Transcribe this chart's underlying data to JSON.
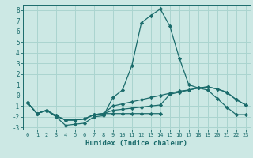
{
  "xlabel": "Humidex (Indice chaleur)",
  "background_color": "#cce8e4",
  "grid_color": "#aad4cf",
  "line_color": "#1a6b6b",
  "xlim": [
    -0.5,
    23.5
  ],
  "ylim": [
    -3.2,
    8.5
  ],
  "yticks": [
    -3,
    -2,
    -1,
    0,
    1,
    2,
    3,
    4,
    5,
    6,
    7,
    8
  ],
  "xticks": [
    0,
    1,
    2,
    3,
    4,
    5,
    6,
    7,
    8,
    9,
    10,
    11,
    12,
    13,
    14,
    15,
    16,
    17,
    18,
    19,
    20,
    21,
    22,
    23
  ],
  "series": [
    {
      "x": [
        0,
        1,
        2,
        3,
        4,
        5,
        6,
        7,
        8,
        9,
        10,
        11,
        12,
        13,
        14,
        15,
        16,
        17,
        18,
        19,
        20,
        21,
        22,
        23
      ],
      "y": [
        -0.7,
        -1.7,
        -1.4,
        -2.0,
        -2.8,
        -2.7,
        -2.6,
        -2.0,
        -1.9,
        -0.2,
        0.5,
        2.8,
        6.8,
        7.5,
        8.1,
        6.5,
        3.5,
        1.0,
        0.7,
        0.5,
        -0.3,
        -1.1,
        -1.8,
        -1.8
      ]
    },
    {
      "x": [
        0,
        1,
        2,
        3,
        4,
        5,
        6,
        7,
        8,
        9,
        10,
        11,
        12,
        13,
        14,
        15,
        16,
        17,
        18,
        19,
        20,
        21,
        22,
        23
      ],
      "y": [
        -0.7,
        -1.7,
        -1.4,
        -1.9,
        -2.3,
        -2.3,
        -2.2,
        -1.8,
        -1.7,
        -1.0,
        -0.8,
        -0.6,
        -0.4,
        -0.2,
        0.0,
        0.2,
        0.4,
        0.5,
        0.7,
        0.8,
        0.6,
        0.3,
        -0.4,
        -0.9
      ]
    },
    {
      "x": [
        0,
        1,
        2,
        3,
        4,
        5,
        6,
        7,
        8,
        9,
        10,
        11,
        12,
        13,
        14,
        15,
        16,
        17,
        18,
        19,
        20,
        21,
        22,
        23
      ],
      "y": [
        -0.7,
        -1.7,
        -1.4,
        -1.9,
        -2.3,
        -2.3,
        -2.2,
        -1.8,
        -1.7,
        -1.4,
        -1.3,
        -1.2,
        -1.1,
        -1.0,
        -0.9,
        0.1,
        0.3,
        0.5,
        0.7,
        0.8,
        0.6,
        0.3,
        -0.4,
        -0.9
      ]
    },
    {
      "x": [
        0,
        1,
        2,
        3,
        4,
        5,
        6,
        7,
        8,
        9,
        10,
        11,
        12,
        13,
        14
      ],
      "y": [
        -0.7,
        -1.7,
        -1.4,
        -1.9,
        -2.3,
        -2.3,
        -2.2,
        -1.8,
        -1.7,
        -1.7,
        -1.7,
        -1.7,
        -1.7,
        -1.7,
        -1.7
      ]
    }
  ]
}
